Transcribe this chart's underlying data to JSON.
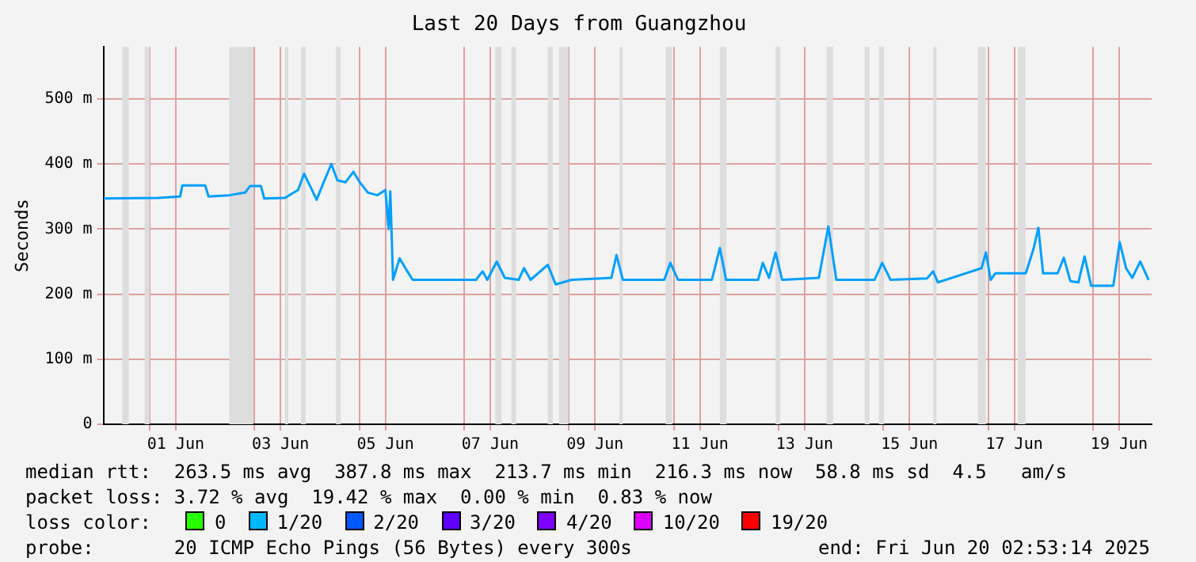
{
  "chart_data": {
    "type": "line",
    "title": "Last 20 Days from Guangzhou",
    "ylabel": "Seconds",
    "x": [
      "2025-05-31T03:00",
      "2025-06-01T04:00",
      "2025-06-01T14:00",
      "2025-06-01T15:00",
      "2025-06-02T01:30",
      "2025-06-02T03:00",
      "2025-06-02T12:30",
      "2025-06-02T19:45",
      "2025-06-02T22:00",
      "2025-06-03T03:00",
      "2025-06-03T04:30",
      "2025-06-03T14:00",
      "2025-06-03T20:00",
      "2025-06-03T22:45",
      "2025-06-04T01:40",
      "2025-06-04T04:30",
      "2025-06-04T07:30",
      "2025-06-04T11:15",
      "2025-06-04T14:00",
      "2025-06-04T17:45",
      "2025-06-04T21:20",
      "2025-06-05T00:15",
      "2025-06-05T04:00",
      "2025-06-05T08:20",
      "2025-06-05T12:00",
      "2025-06-05T13:30",
      "2025-06-05T14:15",
      "2025-06-05T15:30",
      "2025-06-05T18:30",
      "2025-06-05T21:30",
      "2025-06-06T00:30",
      "2025-06-07T05:30",
      "2025-06-07T08:30",
      "2025-06-07T10:40",
      "2025-06-07T15:00",
      "2025-06-07T18:40",
      "2025-06-08T01:00",
      "2025-06-08T03:30",
      "2025-06-08T06:30",
      "2025-06-08T14:20",
      "2025-06-08T18:00",
      "2025-06-09T01:20",
      "2025-06-09T19:30",
      "2025-06-09T21:50",
      "2025-06-10T00:45",
      "2025-06-10T19:40",
      "2025-06-10T22:30",
      "2025-06-11T02:00",
      "2025-06-11T17:30",
      "2025-06-11T21:10",
      "2025-06-12T00:00",
      "2025-06-12T14:40",
      "2025-06-12T16:50",
      "2025-06-12T19:40",
      "2025-06-12T22:40",
      "2025-06-13T01:40",
      "2025-06-13T18:30",
      "2025-06-13T22:50",
      "2025-06-14T02:30",
      "2025-06-14T20:00",
      "2025-06-14T23:30",
      "2025-06-15T03:20",
      "2025-06-15T20:00",
      "2025-06-15T22:50",
      "2025-06-16T01:00",
      "2025-06-16T12:00",
      "2025-06-16T21:00",
      "2025-06-16T23:00",
      "2025-06-17T01:10",
      "2025-06-17T03:20",
      "2025-06-17T17:15",
      "2025-06-17T20:50",
      "2025-06-17T23:00",
      "2025-06-18T01:10",
      "2025-06-18T07:50",
      "2025-06-18T10:40",
      "2025-06-18T13:40",
      "2025-06-18T17:20",
      "2025-06-18T20:10",
      "2025-06-18T23:10",
      "2025-06-19T09:20",
      "2025-06-19T12:15",
      "2025-06-19T15:10",
      "2025-06-19T18:00",
      "2025-06-19T21:40",
      "2025-06-20T01:30"
    ],
    "series": [
      {
        "color": "#00a0ff",
        "values": [
          347,
          348,
          350,
          367,
          367,
          350,
          352,
          356,
          366,
          366,
          347,
          348,
          360,
          385,
          365,
          345,
          370,
          400,
          375,
          372,
          388,
          372,
          356,
          352,
          360,
          300,
          358,
          222,
          255,
          238,
          222,
          222,
          235,
          222,
          250,
          225,
          222,
          240,
          222,
          245,
          215,
          222,
          225,
          260,
          222,
          222,
          248,
          222,
          222,
          271,
          222,
          222,
          248,
          225,
          264,
          222,
          225,
          304,
          222,
          222,
          248,
          222,
          224,
          235,
          218,
          230,
          240,
          264,
          222,
          232,
          232,
          270,
          302,
          232,
          232,
          256,
          220,
          218,
          258,
          213,
          213,
          280,
          240,
          225,
          250,
          222
        ]
      }
    ],
    "xlim": [
      "2025-05-31T02:53",
      "2025-06-20T02:53"
    ],
    "xticks": [
      {
        "value": "2025-06-01T00:00",
        "label": null
      },
      {
        "value": "2025-06-01T12:00",
        "label": "01 Jun"
      },
      {
        "value": "2025-06-03T00:00",
        "label": null
      },
      {
        "value": "2025-06-03T12:00",
        "label": "03 Jun"
      },
      {
        "value": "2025-06-05T00:00",
        "label": null
      },
      {
        "value": "2025-06-05T12:00",
        "label": "05 Jun"
      },
      {
        "value": "2025-06-07T00:00",
        "label": null
      },
      {
        "value": "2025-06-07T12:00",
        "label": "07 Jun"
      },
      {
        "value": "2025-06-09T00:00",
        "label": null
      },
      {
        "value": "2025-06-09T12:00",
        "label": "09 Jun"
      },
      {
        "value": "2025-06-11T00:00",
        "label": null
      },
      {
        "value": "2025-06-11T12:00",
        "label": "11 Jun"
      },
      {
        "value": "2025-06-13T00:00",
        "label": null
      },
      {
        "value": "2025-06-13T12:00",
        "label": "13 Jun"
      },
      {
        "value": "2025-06-15T00:00",
        "label": null
      },
      {
        "value": "2025-06-15T12:00",
        "label": "15 Jun"
      },
      {
        "value": "2025-06-17T00:00",
        "label": null
      },
      {
        "value": "2025-06-17T12:00",
        "label": "17 Jun"
      },
      {
        "value": "2025-06-19T00:00",
        "label": null
      },
      {
        "value": "2025-06-19T12:00",
        "label": "19 Jun"
      }
    ],
    "ylim": [
      0,
      580
    ],
    "yticks": [
      0,
      {
        "value": 100,
        "label": "100 m"
      },
      {
        "value": 200,
        "label": "200 m"
      },
      {
        "value": 300,
        "label": "300 m"
      },
      {
        "value": 400,
        "label": "400 m"
      },
      {
        "value": 500,
        "label": "500 m"
      }
    ],
    "grid": true,
    "legend": false,
    "marker": "none",
    "line_style": "solid",
    "bands": [
      {
        "axis": "x",
        "from": "2025-05-31T11:30",
        "to": "2025-05-31T14:30",
        "color": "#dddddd"
      },
      {
        "axis": "x",
        "from": "2025-05-31T21:45",
        "to": "2025-06-01T00:00",
        "color": "#dddddd"
      },
      {
        "axis": "x",
        "from": "2025-06-02T12:30",
        "to": "2025-06-02T23:30",
        "color": "#dddddd"
      },
      {
        "axis": "x",
        "from": "2025-06-03T14:00",
        "to": "2025-06-03T15:30",
        "color": "#dddddd"
      },
      {
        "axis": "x",
        "from": "2025-06-03T21:20",
        "to": "2025-06-03T23:30",
        "color": "#dddddd"
      },
      {
        "axis": "x",
        "from": "2025-06-04T13:20",
        "to": "2025-06-04T15:30",
        "color": "#dddddd"
      },
      {
        "axis": "x",
        "from": "2025-06-07T14:20",
        "to": "2025-06-07T17:10",
        "color": "#dddddd"
      },
      {
        "axis": "x",
        "from": "2025-06-07T21:40",
        "to": "2025-06-07T23:50",
        "color": "#dddddd"
      },
      {
        "axis": "x",
        "from": "2025-06-08T14:20",
        "to": "2025-06-08T16:40",
        "color": "#dddddd"
      },
      {
        "axis": "x",
        "from": "2025-06-08T19:30",
        "to": "2025-06-08T23:50",
        "color": "#dddddd"
      },
      {
        "axis": "x",
        "from": "2025-06-09T23:10",
        "to": "2025-06-10T00:40",
        "color": "#dddddd"
      },
      {
        "axis": "x",
        "from": "2025-06-10T20:20",
        "to": "2025-06-10T23:20",
        "color": "#dddddd"
      },
      {
        "axis": "x",
        "from": "2025-06-11T21:10",
        "to": "2025-06-12T00:10",
        "color": "#dddddd"
      },
      {
        "axis": "x",
        "from": "2025-06-12T22:40",
        "to": "2025-06-13T00:50",
        "color": "#dddddd"
      },
      {
        "axis": "x",
        "from": "2025-06-13T22:00",
        "to": "2025-06-14T01:00",
        "color": "#dddddd"
      },
      {
        "axis": "x",
        "from": "2025-06-14T15:30",
        "to": "2025-06-14T17:40",
        "color": "#dddddd"
      },
      {
        "axis": "x",
        "from": "2025-06-14T22:00",
        "to": "2025-06-15T00:20",
        "color": "#dddddd"
      },
      {
        "axis": "x",
        "from": "2025-06-15T22:50",
        "to": "2025-06-16T00:20",
        "color": "#dddddd"
      },
      {
        "axis": "x",
        "from": "2025-06-16T19:20",
        "to": "2025-06-16T23:00",
        "color": "#dddddd"
      },
      {
        "axis": "x",
        "from": "2025-06-17T13:35",
        "to": "2025-06-17T17:10",
        "color": "#dddddd"
      }
    ],
    "annotations": [
      "median rtt:  263.5 ms avg  387.8 ms max  213.7 ms min  216.3 ms now  58.8 ms sd  4.5   am/s",
      "packet loss: 3.72 % avg  19.42 % max  0.00 % min  0.83 % now",
      "loss color:",
      "0",
      "1/20",
      "2/20",
      "3/20",
      "4/20",
      "10/20",
      "19/20",
      "probe:       20 ICMP Echo Pings (56 Bytes) every 300s",
      "end: Fri Jun 20 02:53:14 2025"
    ]
  }
}
